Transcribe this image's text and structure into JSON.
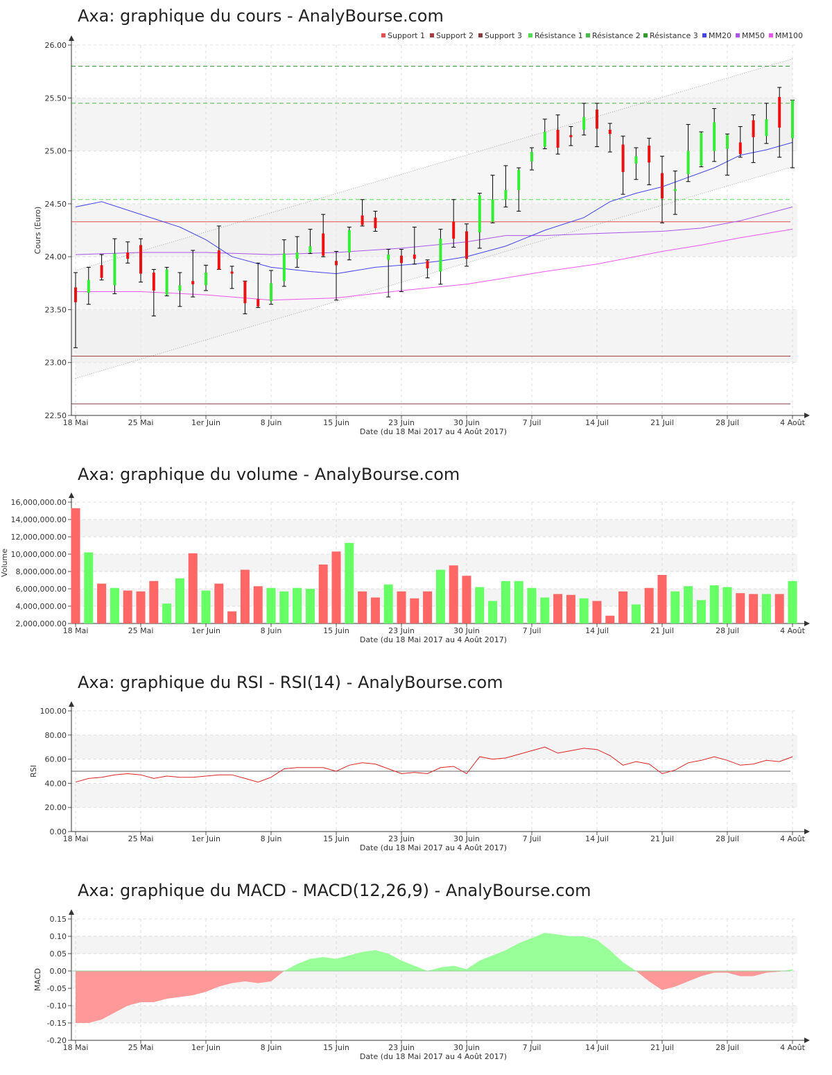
{
  "chart_data": [
    {
      "type": "candlestick",
      "title": "Axa: graphique du cours - AnalyBourse.com",
      "xlabel": "Date (du 18 Mai 2017 au 4 Août 2017)",
      "ylabel": "Cours (Euro)",
      "ylim": [
        22.5,
        26.0
      ],
      "yticks": [
        "26.00",
        "25.50",
        "25.00",
        "24.50",
        "24.00",
        "23.50",
        "23.00",
        "22.50"
      ],
      "grid": true,
      "legend_position": "top-right",
      "legend": [
        {
          "name": "Support 1",
          "color": "#e05050"
        },
        {
          "name": "Support 2",
          "color": "#a04040"
        },
        {
          "name": "Support 3",
          "color": "#804040"
        },
        {
          "name": "Résistance 1",
          "color": "#55dd55"
        },
        {
          "name": "Résistance 2",
          "color": "#44bb44"
        },
        {
          "name": "Résistance 3",
          "color": "#339933"
        },
        {
          "name": "MM20",
          "color": "#4444ee"
        },
        {
          "name": "MM50",
          "color": "#aa55ee"
        },
        {
          "name": "MM100",
          "color": "#ee55ee"
        }
      ],
      "support_lines": [
        24.33,
        23.06,
        22.61
      ],
      "resistance_lines": [
        24.54,
        25.45,
        25.8
      ],
      "x_tick_labels": [
        {
          "label": "18 Mai",
          "i": 0
        },
        {
          "label": "25 Mai",
          "i": 5
        },
        {
          "label": "1er Juin",
          "i": 10
        },
        {
          "label": "8 Juin",
          "i": 15
        },
        {
          "label": "15 Juin",
          "i": 20
        },
        {
          "label": "23 Juin",
          "i": 25
        },
        {
          "label": "30 Juin",
          "i": 30
        },
        {
          "label": "7 Juil",
          "i": 35
        },
        {
          "label": "14 Juil",
          "i": 40
        },
        {
          "label": "21 Juil",
          "i": 45
        },
        {
          "label": "28 Juil",
          "i": 50
        },
        {
          "label": "4 Août",
          "i": 55
        }
      ],
      "candles": [
        {
          "o": 23.71,
          "h": 23.85,
          "l": 23.14,
          "c": 23.57
        },
        {
          "o": 23.66,
          "h": 23.9,
          "l": 23.55,
          "c": 23.78
        },
        {
          "o": 23.92,
          "h": 24.02,
          "l": 23.78,
          "c": 23.8
        },
        {
          "o": 23.73,
          "h": 24.17,
          "l": 23.65,
          "c": 24.03
        },
        {
          "o": 24.04,
          "h": 24.14,
          "l": 23.94,
          "c": 23.98
        },
        {
          "o": 24.11,
          "h": 24.17,
          "l": 23.76,
          "c": 23.84
        },
        {
          "o": 23.85,
          "h": 23.88,
          "l": 23.44,
          "c": 23.68
        },
        {
          "o": 23.64,
          "h": 23.9,
          "l": 23.63,
          "c": 23.88
        },
        {
          "o": 23.68,
          "h": 23.85,
          "l": 23.53,
          "c": 23.73
        },
        {
          "o": 23.77,
          "h": 24.06,
          "l": 23.62,
          "c": 23.74
        },
        {
          "o": 23.73,
          "h": 23.92,
          "l": 23.68,
          "c": 23.85
        },
        {
          "o": 24.06,
          "h": 24.29,
          "l": 23.88,
          "c": 23.88
        },
        {
          "o": 23.86,
          "h": 23.91,
          "l": 23.7,
          "c": 23.84
        },
        {
          "o": 23.77,
          "h": 23.77,
          "l": 23.46,
          "c": 23.56
        },
        {
          "o": 23.6,
          "h": 23.94,
          "l": 23.52,
          "c": 23.53
        },
        {
          "o": 23.58,
          "h": 23.87,
          "l": 23.55,
          "c": 23.75
        },
        {
          "o": 23.77,
          "h": 24.16,
          "l": 23.72,
          "c": 24.03
        },
        {
          "o": 23.98,
          "h": 24.19,
          "l": 23.9,
          "c": 24.04
        },
        {
          "o": 24.04,
          "h": 24.26,
          "l": 24.03,
          "c": 24.1
        },
        {
          "o": 24.22,
          "h": 24.4,
          "l": 24.0,
          "c": 24.01
        },
        {
          "o": 23.96,
          "h": 24.05,
          "l": 23.59,
          "c": 23.92
        },
        {
          "o": 24.04,
          "h": 24.28,
          "l": 23.97,
          "c": 24.25
        },
        {
          "o": 24.39,
          "h": 24.54,
          "l": 24.29,
          "c": 24.3
        },
        {
          "o": 24.37,
          "h": 24.43,
          "l": 24.24,
          "c": 24.27
        },
        {
          "o": 23.97,
          "h": 24.07,
          "l": 23.62,
          "c": 24.02
        },
        {
          "o": 24.01,
          "h": 24.07,
          "l": 23.67,
          "c": 23.94
        },
        {
          "o": 24.02,
          "h": 24.28,
          "l": 23.93,
          "c": 23.98
        },
        {
          "o": 23.96,
          "h": 23.97,
          "l": 23.8,
          "c": 23.89
        },
        {
          "o": 23.86,
          "h": 24.26,
          "l": 23.74,
          "c": 24.17
        },
        {
          "o": 24.33,
          "h": 24.54,
          "l": 24.09,
          "c": 24.17
        },
        {
          "o": 24.24,
          "h": 24.31,
          "l": 23.91,
          "c": 23.98
        },
        {
          "o": 24.23,
          "h": 24.6,
          "l": 24.08,
          "c": 24.58
        },
        {
          "o": 24.33,
          "h": 24.77,
          "l": 24.32,
          "c": 24.54
        },
        {
          "o": 24.54,
          "h": 24.86,
          "l": 24.47,
          "c": 24.63
        },
        {
          "o": 24.63,
          "h": 24.84,
          "l": 24.43,
          "c": 24.82
        },
        {
          "o": 24.9,
          "h": 25.03,
          "l": 24.82,
          "c": 24.99
        },
        {
          "o": 25.04,
          "h": 25.3,
          "l": 25.02,
          "c": 25.18
        },
        {
          "o": 25.2,
          "h": 25.34,
          "l": 24.97,
          "c": 25.03
        },
        {
          "o": 25.15,
          "h": 25.23,
          "l": 25.05,
          "c": 25.13
        },
        {
          "o": 25.2,
          "h": 25.45,
          "l": 25.15,
          "c": 25.32
        },
        {
          "o": 25.39,
          "h": 25.45,
          "l": 25.04,
          "c": 25.21
        },
        {
          "o": 25.2,
          "h": 25.26,
          "l": 24.99,
          "c": 25.16
        },
        {
          "o": 25.06,
          "h": 25.14,
          "l": 24.59,
          "c": 24.8
        },
        {
          "o": 24.88,
          "h": 25.03,
          "l": 24.73,
          "c": 24.95
        },
        {
          "o": 25.05,
          "h": 25.12,
          "l": 24.68,
          "c": 24.89
        },
        {
          "o": 24.79,
          "h": 24.95,
          "l": 24.32,
          "c": 24.55
        },
        {
          "o": 24.62,
          "h": 24.81,
          "l": 24.4,
          "c": 24.64
        },
        {
          "o": 24.78,
          "h": 25.25,
          "l": 24.71,
          "c": 25.0
        },
        {
          "o": 24.86,
          "h": 25.18,
          "l": 24.85,
          "c": 25.17
        },
        {
          "o": 25.0,
          "h": 25.4,
          "l": 24.9,
          "c": 25.27
        },
        {
          "o": 25.02,
          "h": 25.16,
          "l": 24.77,
          "c": 25.15
        },
        {
          "o": 25.08,
          "h": 25.23,
          "l": 24.94,
          "c": 24.97
        },
        {
          "o": 25.29,
          "h": 25.34,
          "l": 24.89,
          "c": 25.13
        },
        {
          "o": 25.14,
          "h": 25.45,
          "l": 25.07,
          "c": 25.3
        },
        {
          "o": 25.51,
          "h": 25.6,
          "l": 24.94,
          "c": 25.22
        },
        {
          "o": 25.12,
          "h": 25.48,
          "l": 24.84,
          "c": 25.48
        }
      ],
      "mm20": [
        [
          0,
          24.47
        ],
        [
          2,
          24.52
        ],
        [
          5,
          24.4
        ],
        [
          8,
          24.28
        ],
        [
          10,
          24.16
        ],
        [
          12,
          24.0
        ],
        [
          15,
          23.9
        ],
        [
          18,
          23.86
        ],
        [
          20,
          23.84
        ],
        [
          23,
          23.9
        ],
        [
          26,
          23.93
        ],
        [
          28,
          23.96
        ],
        [
          30,
          24.0
        ],
        [
          33,
          24.1
        ],
        [
          36,
          24.25
        ],
        [
          39,
          24.37
        ],
        [
          41,
          24.52
        ],
        [
          43,
          24.6
        ],
        [
          45,
          24.66
        ],
        [
          47,
          24.75
        ],
        [
          49,
          24.84
        ],
        [
          51,
          24.96
        ],
        [
          53,
          25.01
        ],
        [
          55,
          25.08
        ]
      ],
      "mm50": [
        [
          0,
          24.02
        ],
        [
          5,
          24.04
        ],
        [
          10,
          24.04
        ],
        [
          15,
          24.02
        ],
        [
          20,
          24.04
        ],
        [
          25,
          24.08
        ],
        [
          30,
          24.14
        ],
        [
          33,
          24.2
        ],
        [
          36,
          24.2
        ],
        [
          40,
          24.22
        ],
        [
          45,
          24.24
        ],
        [
          48,
          24.27
        ],
        [
          51,
          24.34
        ],
        [
          55,
          24.47
        ]
      ],
      "mm100": [
        [
          0,
          23.67
        ],
        [
          5,
          23.67
        ],
        [
          10,
          23.64
        ],
        [
          15,
          23.59
        ],
        [
          20,
          23.61
        ],
        [
          25,
          23.68
        ],
        [
          30,
          23.74
        ],
        [
          33,
          23.8
        ],
        [
          36,
          23.86
        ],
        [
          40,
          23.93
        ],
        [
          45,
          24.05
        ],
        [
          48,
          24.11
        ],
        [
          51,
          24.18
        ],
        [
          55,
          24.26
        ]
      ]
    },
    {
      "type": "bar",
      "title": "Axa: graphique du volume - AnalyBourse.com",
      "xlabel": "Date (du 18 Mai 2017 au 4 Août 2017)",
      "ylabel": "Volume",
      "ylim": [
        2000000,
        16000000
      ],
      "yticks": [
        "16,000,000.00",
        "14,000,000.00",
        "12,000,000.00",
        "10,000,000.00",
        "8,000,000.00",
        "6,000,000.00",
        "4,000,000.00",
        "2,000,000.00"
      ],
      "colors": {
        "up": "#66ff66",
        "down": "#ff6666"
      },
      "values": [
        15300000,
        10200000,
        6600000,
        6100000,
        5800000,
        5700000,
        6900000,
        4300000,
        7200000,
        10100000,
        5800000,
        6600000,
        3400000,
        8200000,
        6300000,
        6100000,
        5700000,
        6100000,
        6000000,
        8800000,
        10300000,
        11300000,
        5700000,
        5000000,
        6500000,
        5700000,
        4900000,
        5700000,
        8200000,
        8700000,
        7500000,
        6200000,
        4600000,
        6900000,
        6900000,
        6100000,
        5000000,
        5400000,
        5300000,
        4900000,
        4600000,
        2900000,
        5700000,
        4200000,
        6100000,
        7600000,
        5700000,
        6300000,
        4700000,
        6400000,
        6200000,
        5500000,
        5400000,
        5400000,
        5400000,
        6900000
      ]
    },
    {
      "type": "line",
      "title": "Axa: graphique du RSI - RSI(14) - AnalyBourse.com",
      "xlabel": "Date (du 18 Mai 2017 au 4 Août 2017)",
      "ylabel": "RSI",
      "ylim": [
        0,
        100
      ],
      "yticks": [
        "100.00",
        "80.00",
        "60.00",
        "40.00",
        "20.00",
        "0.00"
      ],
      "reference_line": 50,
      "values": [
        41,
        44,
        45,
        47,
        48,
        47,
        44,
        46,
        45,
        45,
        46,
        47,
        47,
        44,
        41,
        45,
        52,
        53,
        53,
        53,
        50,
        55,
        57,
        56,
        52,
        48,
        49,
        48,
        53,
        54,
        48,
        62,
        60,
        61,
        64,
        67,
        70,
        65,
        67,
        69,
        68,
        63,
        55,
        58,
        56,
        48,
        51,
        57,
        59,
        62,
        59,
        55,
        56,
        59,
        58,
        62
      ]
    },
    {
      "type": "area",
      "title": "Axa: graphique du MACD - MACD(12,26,9) - AnalyBourse.com",
      "xlabel": "Date (du 18 Mai 2017 au 4 Août 2017)",
      "ylabel": "MACD",
      "ylim": [
        -0.2,
        0.15
      ],
      "yticks": [
        "0.15",
        "0.10",
        "0.05",
        "0.00",
        "-0.05",
        "-0.10",
        "-0.15",
        "-0.20"
      ],
      "colors": {
        "positive": "#99ff99",
        "negative": "#ff9999"
      },
      "values": [
        -0.15,
        -0.15,
        -0.14,
        -0.12,
        -0.1,
        -0.09,
        -0.09,
        -0.08,
        -0.075,
        -0.07,
        -0.06,
        -0.045,
        -0.035,
        -0.03,
        -0.035,
        -0.03,
        0.0,
        0.02,
        0.035,
        0.04,
        0.035,
        0.045,
        0.055,
        0.06,
        0.05,
        0.03,
        0.015,
        0.0,
        0.01,
        0.015,
        0.005,
        0.03,
        0.045,
        0.06,
        0.08,
        0.095,
        0.11,
        0.105,
        0.1,
        0.1,
        0.09,
        0.06,
        0.025,
        0.0,
        -0.03,
        -0.055,
        -0.045,
        -0.03,
        -0.015,
        -0.005,
        -0.005,
        -0.015,
        -0.015,
        -0.005,
        -0.002,
        0.005
      ]
    }
  ]
}
